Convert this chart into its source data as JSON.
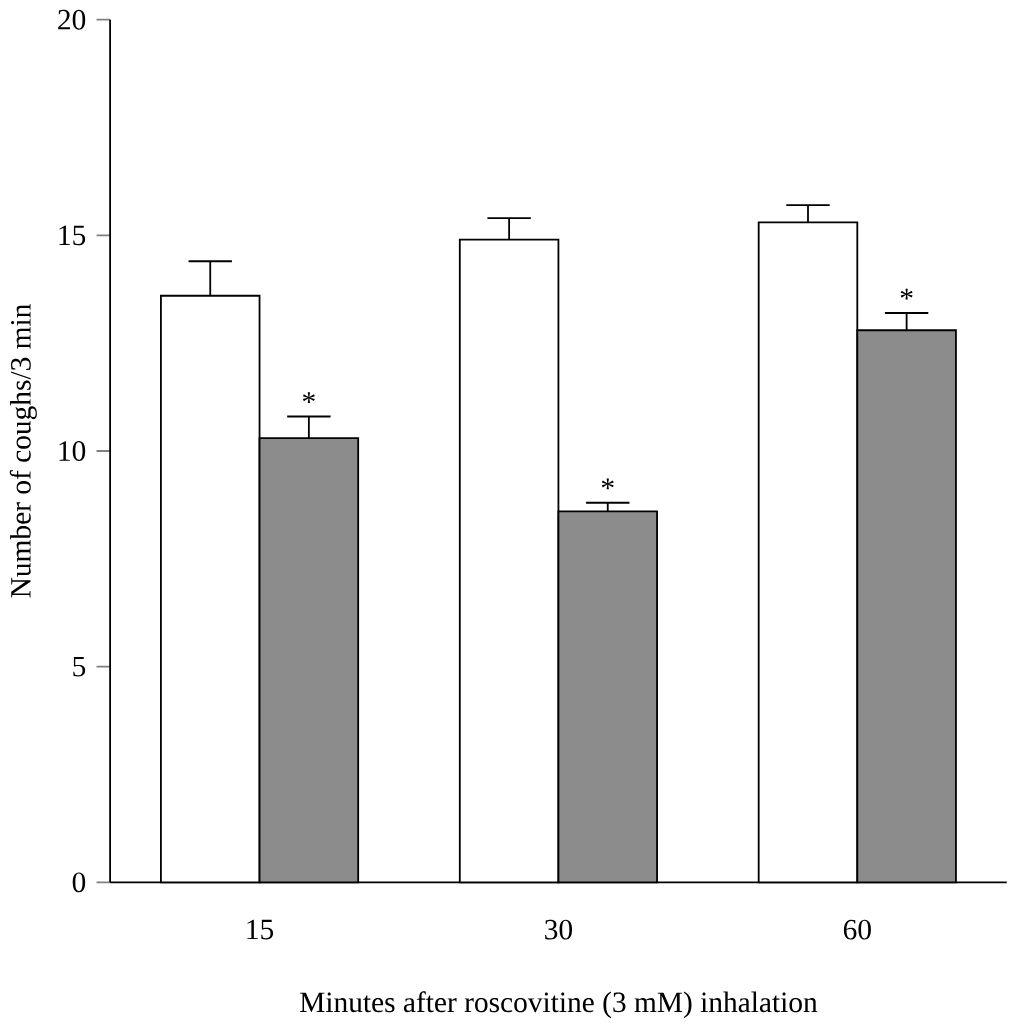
{
  "chart_data": {
    "type": "bar",
    "xlabel": "Minutes after roscovitine (3 mM) inhalation",
    "ylabel": "Number of coughs/3 min",
    "categories": [
      "15",
      "30",
      "60"
    ],
    "series": [
      {
        "color": "#ffffff",
        "values": [
          13.6,
          14.9,
          15.3
        ],
        "errors": [
          [
            13.6,
            14.4
          ],
          [
            14.9,
            15.4
          ],
          [
            15.3,
            15.7
          ]
        ]
      },
      {
        "color": "#8c8c8c",
        "values": [
          10.3,
          8.6,
          12.8
        ],
        "errors": [
          [
            10.3,
            10.8
          ],
          [
            8.6,
            8.8
          ],
          [
            12.8,
            13.2
          ]
        ]
      }
    ],
    "ylim": [
      0,
      20
    ],
    "yticks": [
      0,
      5,
      10,
      15,
      20
    ],
    "annotations": [
      {
        "text": "*",
        "x": "15",
        "y": 10.8
      },
      {
        "text": "*",
        "x": "30",
        "y": 8.8
      },
      {
        "text": "*",
        "x": "60",
        "y": 13.2
      }
    ]
  }
}
